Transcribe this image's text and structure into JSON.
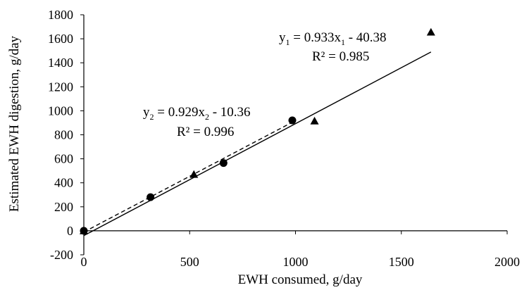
{
  "chart_data": {
    "type": "scatter",
    "title": "",
    "xlabel": "EWH consumed, g/day",
    "ylabel": "Estimated EWH digestion, g/day",
    "xlim": [
      0,
      2000
    ],
    "ylim": [
      -200,
      1800
    ],
    "x_ticks": [
      "0",
      "500",
      "1000",
      "1500",
      "2000"
    ],
    "y_ticks": [
      "-200",
      "0",
      "200",
      "400",
      "600",
      "800",
      "1000",
      "1200",
      "1400",
      "1600",
      "1800"
    ],
    "grid": false,
    "legend": "none",
    "series": [
      {
        "marker": "triangle",
        "color": "#000000",
        "points": [
          [
            0,
            0
          ],
          [
            520,
            470
          ],
          [
            1090,
            915
          ],
          [
            1640,
            1655
          ]
        ],
        "trendline": {
          "style": "solid",
          "slope": 0.933,
          "intercept": -40.38,
          "x_range": [
            0,
            1640
          ],
          "equation": {
            "prefix": "y",
            "sub": "1",
            "mid": " = 0.933x",
            "sub2": "1",
            "suffix": " - 40.38"
          },
          "r2": "R² = 0.985"
        }
      },
      {
        "marker": "circle",
        "color": "#000000",
        "points": [
          [
            0,
            0
          ],
          [
            315,
            280
          ],
          [
            660,
            565
          ],
          [
            985,
            920
          ]
        ],
        "trendline": {
          "style": "dashed",
          "slope": 0.929,
          "intercept": -10.36,
          "x_range": [
            0,
            985
          ],
          "equation": {
            "prefix": "y",
            "sub": "2",
            "mid": " = 0.929x",
            "sub2": "2",
            "suffix": " - 10.36"
          },
          "r2": "R² = 0.996"
        }
      }
    ]
  }
}
